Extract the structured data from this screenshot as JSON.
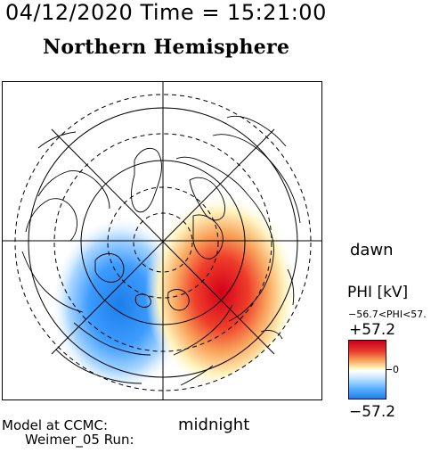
{
  "header": {
    "datetime": "04/12/2020 Time = 15:21:00",
    "hemisphere": "Northern Hemisphere"
  },
  "map": {
    "label_dawn": "dawn",
    "label_midnight": "midnight",
    "potential_cells": [
      {
        "name": "negative",
        "color": "#1b7fe8"
      },
      {
        "name": "positive",
        "color": "#c8001e"
      }
    ]
  },
  "colorbar": {
    "title": "PHI [kV]",
    "range_text": "−56.7<PHI<57.",
    "max_label": "+57.2",
    "min_label": "−57.2",
    "zero_label": "0",
    "max_value": 57.2,
    "min_value": -57.2
  },
  "footer": {
    "line1": "Model at CCMC:",
    "line2": "Weimer_05 Run:"
  }
}
